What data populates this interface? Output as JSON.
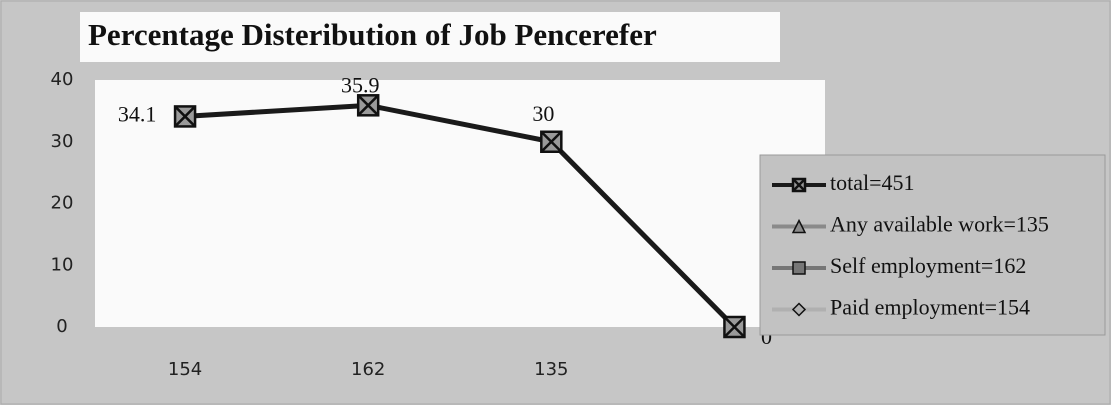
{
  "chart_data": {
    "type": "line",
    "title": "Percentage Disteribution of Job Pencerefer",
    "categories": [
      "154",
      "162",
      "135",
      null
    ],
    "series": [
      {
        "name": "total=451",
        "color": "#1a1a1a",
        "marker": "x-square",
        "values": [
          34.1,
          35.9,
          30,
          0
        ]
      },
      {
        "name": "Any available work=135",
        "color": "#8a8a8a",
        "marker": "triangle",
        "values": [
          null,
          null,
          null,
          null
        ]
      },
      {
        "name": "Self employment=162",
        "color": "#767676",
        "marker": "square",
        "values": [
          null,
          null,
          null,
          null
        ]
      },
      {
        "name": "Paid employment=154",
        "color": "#b0b0b0",
        "marker": "diamond",
        "values": [
          null,
          null,
          null,
          null
        ]
      }
    ],
    "ylim": [
      0,
      40
    ],
    "yticks": [
      0,
      10,
      20,
      30,
      40
    ],
    "grid": false,
    "legend": "right"
  }
}
